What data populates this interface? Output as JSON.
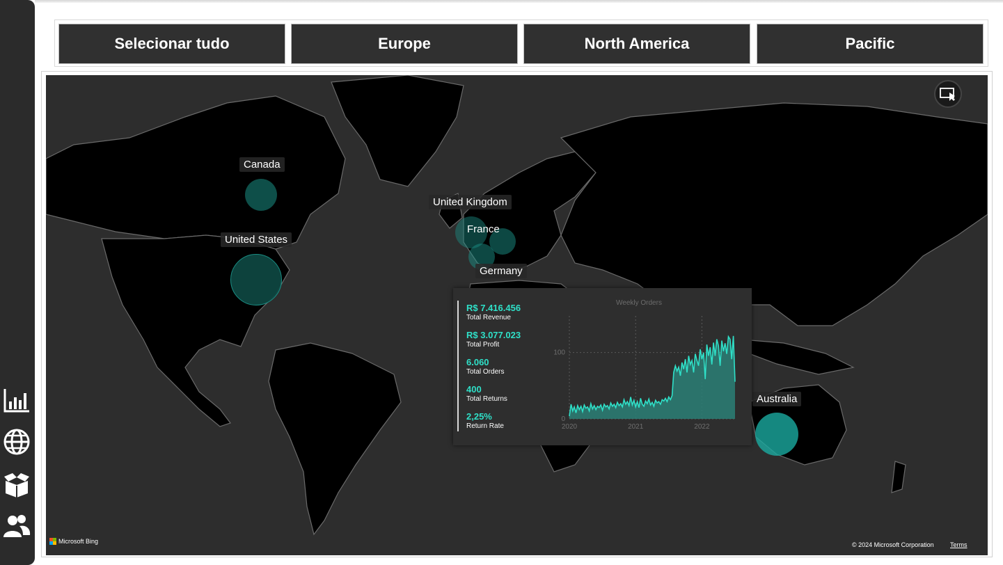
{
  "slicer": {
    "buttons": [
      "Selecionar tudo",
      "Europe",
      "North America",
      "Pacific"
    ]
  },
  "sidebar": {
    "icons": [
      "bar-chart-icon",
      "globe-icon",
      "box-icon",
      "users-icon"
    ]
  },
  "map": {
    "countries": [
      {
        "name": "Canada"
      },
      {
        "name": "United States"
      },
      {
        "name": "United Kingdom"
      },
      {
        "name": "France"
      },
      {
        "name": "Germany"
      },
      {
        "name": "Australia"
      }
    ],
    "provider": "Microsoft Bing",
    "copyright": "© 2024 Microsoft Corporation",
    "terms": "Terms",
    "bubble_color": "#1a8f85"
  },
  "tooltip": {
    "kpis": [
      {
        "value": "R$ 7.416.456",
        "label": "Total Revenue"
      },
      {
        "value": "R$ 3.077.023",
        "label": "Total Profit"
      },
      {
        "value": "6.060",
        "label": "Total Orders"
      },
      {
        "value": "400",
        "label": "Total Returns"
      },
      {
        "value": "2,25%",
        "label": "Return Rate"
      }
    ],
    "accent": "#2fe0c8"
  },
  "chart_data": {
    "type": "area",
    "title": "Weekly Orders",
    "xlabel": "",
    "ylabel": "",
    "x_ticks": [
      "2020",
      "2021",
      "2022"
    ],
    "y_ticks": [
      0,
      100
    ],
    "ylim": [
      0,
      150
    ],
    "grid": true,
    "series": [
      {
        "values": [
          4,
          22,
          12,
          18,
          9,
          20,
          14,
          19,
          11,
          21,
          16,
          18,
          12,
          23,
          15,
          20,
          14,
          19,
          17,
          21,
          13,
          22,
          18,
          20,
          15,
          24,
          19,
          22,
          17,
          25,
          20,
          23,
          18,
          29,
          22,
          26,
          20,
          33,
          21,
          28,
          18,
          26,
          17,
          31,
          22,
          19,
          27,
          23,
          30,
          21,
          25,
          19,
          28,
          24,
          26,
          22,
          29,
          27,
          31,
          26,
          33,
          29,
          35,
          70,
          80,
          72,
          78,
          65,
          85,
          75,
          90,
          70,
          95,
          82,
          88,
          70,
          98,
          88,
          80,
          105,
          90,
          100,
          60,
          112,
          95,
          108,
          82,
          115,
          95,
          120,
          110,
          80,
          118,
          102,
          114,
          98,
          124,
          120,
          90,
          125,
          56
        ]
      }
    ],
    "start": "2020-01",
    "end": "2022-07"
  }
}
